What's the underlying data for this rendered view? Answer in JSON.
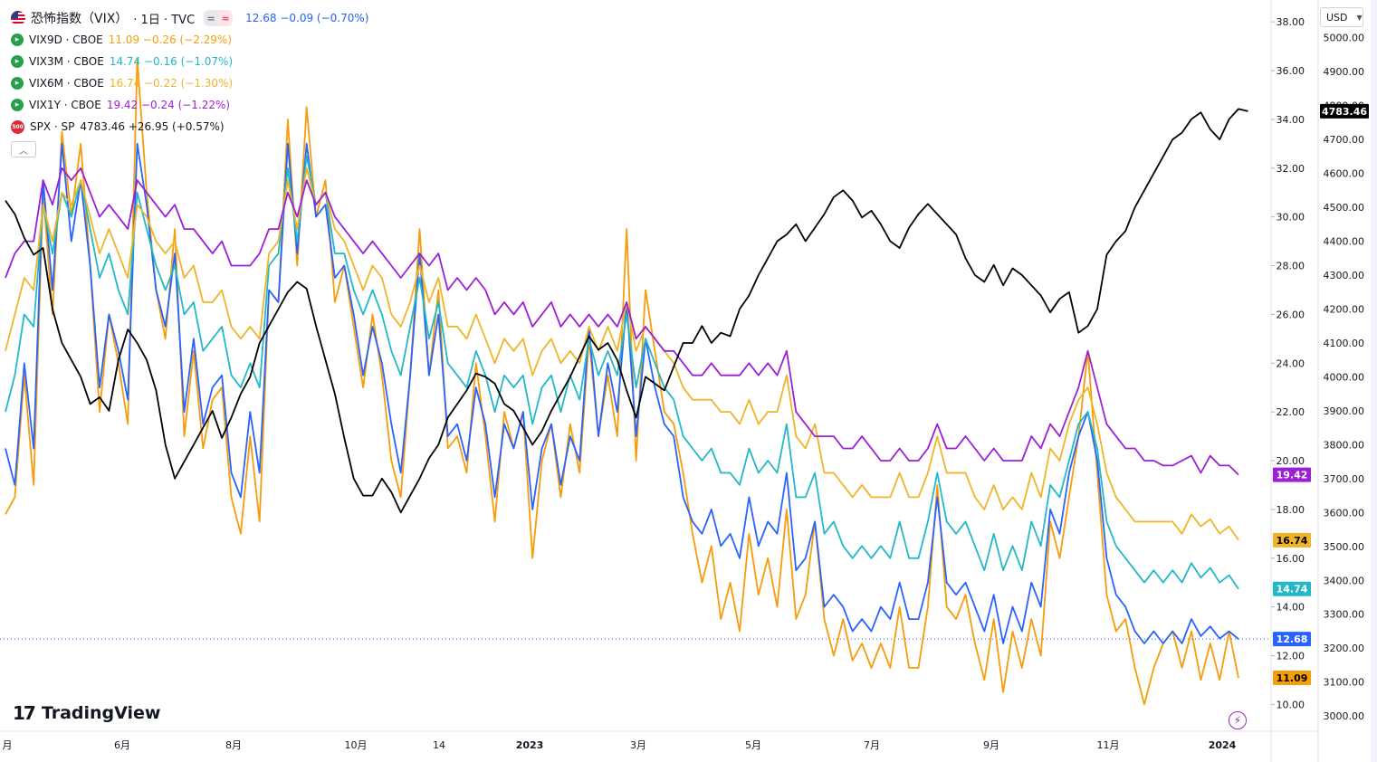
{
  "header": {
    "title": "恐怖指数（VIX）",
    "interval": "· 1日 · TVC",
    "pill_left": "=",
    "pill_right": "≈",
    "value_text": "12.68  −0.09 (−0.70%)"
  },
  "legend": [
    {
      "symbol": "VIX9D · CBOE",
      "value_text": "11.09  −0.26 (−2.29%)",
      "color": "#f59d0b"
    },
    {
      "symbol": "VIX3M · CBOE",
      "value_text": "14.74  −0.16 (−1.07%)",
      "color": "#22b8c8"
    },
    {
      "symbol": "VIX6M · CBOE",
      "value_text": "16.74  −0.22 (−1.30%)",
      "color": "#f0b429"
    },
    {
      "symbol": "VIX1Y · CBOE",
      "value_text": "19.42  −0.24 (−1.22%)",
      "color": "#9c1fd6"
    },
    {
      "symbol": "SPX · SP",
      "value_text": "4783.46  +26.95 (+0.57%)",
      "color": "#131722"
    }
  ],
  "spx_badge": "500",
  "currency": "USD",
  "logo_text": "TradingView",
  "chart_data": {
    "type": "line",
    "x_labels": [
      "月",
      "6月",
      "8月",
      "10月",
      "14",
      "2023",
      "3月",
      "5月",
      "7月",
      "9月",
      "11月",
      "2024"
    ],
    "y_left_ticks": [
      10,
      12,
      14,
      16,
      18,
      20,
      22,
      24,
      26,
      28,
      30,
      32,
      34,
      36,
      38
    ],
    "y_left_range": [
      8.9,
      38.6
    ],
    "y_right_ticks": [
      3000,
      3100,
      3200,
      3300,
      3400,
      3500,
      3600,
      3700,
      3800,
      3900,
      4000,
      4100,
      4200,
      4300,
      4400,
      4500,
      4600,
      4700,
      4800,
      4900,
      5000
    ],
    "y_right_range": [
      2955,
      5090
    ],
    "current_price_line": 12.68,
    "series": [
      {
        "name": "VIX9D",
        "axis": "left",
        "color": "#f59d0b",
        "last_label": "11.09",
        "values": [
          17.8,
          18.5,
          23.5,
          19.0,
          31.0,
          26.0,
          33.5,
          30.0,
          33.0,
          28.0,
          22.0,
          26.0,
          24.0,
          21.5,
          36.5,
          31.0,
          27.0,
          25.0,
          29.5,
          21.0,
          24.5,
          20.5,
          22.5,
          23.0,
          18.5,
          17.0,
          21.0,
          17.5,
          27.0,
          26.5,
          34.0,
          28.0,
          34.5,
          30.0,
          31.5,
          26.5,
          28.0,
          25.5,
          23.0,
          26.0,
          23.5,
          20.0,
          18.5,
          23.5,
          29.5,
          23.5,
          27.0,
          20.5,
          21.0,
          19.5,
          24.0,
          21.0,
          17.5,
          22.0,
          20.5,
          22.0,
          16.0,
          20.0,
          21.5,
          18.5,
          21.5,
          19.5,
          25.0,
          21.0,
          23.5,
          21.0,
          29.5,
          20.0,
          27.0,
          24.5,
          22.0,
          21.5,
          19.5,
          17.0,
          15.0,
          16.5,
          13.5,
          15.0,
          13.0,
          17.0,
          14.5,
          16.0,
          14.0,
          18.0,
          13.5,
          14.5,
          17.5,
          13.5,
          12.0,
          13.5,
          11.8,
          12.5,
          11.5,
          12.5,
          11.5,
          14.0,
          11.5,
          11.5,
          14.0,
          19.0,
          14.0,
          13.5,
          14.5,
          12.5,
          11.0,
          13.5,
          10.5,
          13.0,
          11.5,
          13.5,
          12.0,
          17.5,
          16.0,
          18.5,
          21.0,
          24.5,
          19.5,
          14.5,
          13.0,
          13.5,
          11.5,
          10.0,
          11.5,
          12.5,
          13.0,
          11.5,
          13.0,
          11.0,
          12.5,
          11.0,
          13.0,
          11.09
        ]
      },
      {
        "name": "VIX",
        "axis": "left",
        "color": "#2962ff",
        "last_label": "12.68",
        "values": [
          20.5,
          19.0,
          24.0,
          20.5,
          31.5,
          27.0,
          33.0,
          29.0,
          31.5,
          28.0,
          23.0,
          26.0,
          24.5,
          22.5,
          33.0,
          30.5,
          27.0,
          25.5,
          28.5,
          22.0,
          25.0,
          21.5,
          23.0,
          23.5,
          19.5,
          18.5,
          22.0,
          19.5,
          27.0,
          26.5,
          33.0,
          28.5,
          33.0,
          30.0,
          30.5,
          27.5,
          28.0,
          26.0,
          23.5,
          25.5,
          24.0,
          21.5,
          19.5,
          23.5,
          28.5,
          23.5,
          26.0,
          21.0,
          21.5,
          20.0,
          23.0,
          21.5,
          18.5,
          21.5,
          20.5,
          22.0,
          18.0,
          20.5,
          21.5,
          19.0,
          21.0,
          20.0,
          25.5,
          21.0,
          24.0,
          22.0,
          26.5,
          21.0,
          25.0,
          23.0,
          21.5,
          21.0,
          18.5,
          17.5,
          17.0,
          18.0,
          16.5,
          17.0,
          16.0,
          18.5,
          16.5,
          17.5,
          17.0,
          19.5,
          15.5,
          16.0,
          17.5,
          14.0,
          14.5,
          14.0,
          13.0,
          13.5,
          13.0,
          14.0,
          13.5,
          15.0,
          13.5,
          13.5,
          15.0,
          18.5,
          15.0,
          14.5,
          15.0,
          14.0,
          13.0,
          14.5,
          12.5,
          14.0,
          13.0,
          15.0,
          14.0,
          18.0,
          17.0,
          19.5,
          21.0,
          22.0,
          20.0,
          16.0,
          14.5,
          14.0,
          13.0,
          12.5,
          13.0,
          12.5,
          13.0,
          12.5,
          13.5,
          12.8,
          13.2,
          12.7,
          13.0,
          12.68
        ]
      },
      {
        "name": "VIX3M",
        "axis": "left",
        "color": "#22b8c8",
        "last_label": "14.74",
        "values": [
          22.0,
          23.5,
          26.0,
          25.5,
          30.5,
          28.5,
          31.0,
          30.0,
          31.5,
          29.5,
          27.5,
          28.5,
          27.0,
          26.0,
          31.0,
          29.5,
          28.0,
          27.0,
          28.0,
          26.0,
          26.5,
          24.5,
          25.0,
          25.5,
          23.5,
          23.0,
          24.0,
          23.0,
          28.0,
          28.5,
          32.0,
          29.0,
          32.5,
          30.5,
          31.0,
          28.5,
          28.5,
          27.0,
          26.0,
          27.0,
          26.0,
          24.5,
          23.5,
          25.5,
          27.5,
          25.0,
          26.5,
          24.0,
          23.5,
          23.0,
          24.5,
          23.5,
          22.0,
          23.5,
          23.0,
          23.5,
          21.5,
          23.0,
          23.5,
          22.0,
          23.5,
          22.5,
          25.0,
          23.5,
          24.5,
          23.5,
          26.0,
          23.0,
          25.0,
          24.0,
          23.0,
          22.5,
          21.0,
          20.5,
          20.0,
          20.5,
          19.5,
          19.5,
          19.0,
          20.5,
          19.5,
          20.0,
          19.5,
          21.5,
          18.5,
          18.5,
          19.5,
          17.0,
          17.5,
          16.5,
          16.0,
          16.5,
          16.0,
          16.5,
          16.0,
          17.5,
          16.0,
          16.0,
          17.5,
          19.5,
          17.5,
          17.0,
          17.5,
          16.5,
          15.5,
          17.0,
          15.5,
          16.5,
          15.5,
          17.5,
          16.5,
          19.0,
          18.5,
          20.0,
          21.5,
          22.0,
          20.5,
          17.5,
          16.5,
          16.0,
          15.5,
          15.0,
          15.5,
          15.0,
          15.5,
          15.0,
          15.8,
          15.2,
          15.6,
          15.0,
          15.3,
          14.74
        ]
      },
      {
        "name": "VIX6M",
        "axis": "left",
        "color": "#f0b429",
        "last_label": "16.74",
        "values": [
          24.5,
          26.0,
          27.5,
          27.0,
          30.5,
          29.0,
          31.0,
          30.5,
          31.5,
          30.0,
          28.5,
          29.5,
          28.5,
          27.5,
          30.5,
          30.0,
          29.0,
          28.5,
          29.0,
          27.5,
          28.0,
          26.5,
          26.5,
          27.0,
          25.5,
          25.0,
          25.5,
          25.0,
          28.5,
          29.0,
          31.5,
          29.5,
          32.0,
          30.5,
          31.0,
          29.5,
          29.0,
          28.0,
          27.0,
          28.0,
          27.5,
          26.0,
          25.5,
          26.5,
          28.0,
          26.5,
          27.5,
          25.5,
          25.5,
          25.0,
          26.0,
          25.0,
          24.0,
          25.0,
          24.5,
          25.0,
          23.5,
          24.5,
          25.0,
          24.0,
          24.5,
          24.0,
          25.5,
          24.5,
          25.5,
          24.5,
          26.5,
          24.5,
          25.5,
          25.0,
          24.5,
          24.0,
          23.0,
          22.5,
          22.5,
          22.5,
          22.0,
          22.0,
          21.5,
          22.5,
          21.5,
          22.0,
          22.0,
          23.5,
          21.0,
          20.5,
          21.5,
          19.5,
          19.5,
          19.0,
          18.5,
          19.0,
          18.5,
          18.5,
          18.5,
          19.5,
          18.5,
          18.5,
          19.5,
          21.0,
          19.5,
          19.5,
          19.5,
          18.5,
          18.0,
          19.0,
          18.0,
          18.5,
          18.0,
          19.5,
          18.5,
          20.5,
          20.0,
          21.5,
          22.5,
          23.0,
          21.5,
          19.5,
          18.5,
          18.0,
          17.5,
          17.5,
          17.5,
          17.5,
          17.5,
          17.0,
          17.8,
          17.3,
          17.6,
          17.0,
          17.3,
          16.74
        ]
      },
      {
        "name": "VIX1Y",
        "axis": "left",
        "color": "#9c1fd6",
        "last_label": "19.42",
        "values": [
          27.5,
          28.5,
          29.0,
          29.0,
          31.5,
          30.5,
          32.0,
          31.5,
          32.0,
          31.0,
          30.0,
          30.5,
          30.0,
          29.5,
          31.5,
          31.0,
          30.5,
          30.0,
          30.5,
          29.5,
          29.5,
          29.0,
          28.5,
          29.0,
          28.0,
          28.0,
          28.0,
          28.5,
          29.5,
          29.5,
          31.0,
          30.0,
          31.5,
          30.5,
          31.0,
          30.0,
          29.5,
          29.0,
          28.5,
          29.0,
          28.5,
          28.0,
          27.5,
          28.0,
          28.5,
          28.0,
          28.5,
          27.0,
          27.5,
          27.0,
          27.5,
          27.0,
          26.0,
          26.5,
          26.0,
          26.5,
          25.5,
          26.0,
          26.5,
          25.5,
          26.0,
          25.5,
          26.0,
          25.5,
          26.0,
          25.5,
          26.5,
          25.0,
          25.5,
          25.0,
          24.5,
          24.5,
          24.0,
          23.5,
          23.5,
          24.0,
          23.5,
          23.5,
          23.5,
          24.0,
          23.5,
          24.0,
          23.5,
          24.5,
          22.0,
          21.5,
          21.0,
          21.0,
          21.0,
          20.5,
          20.5,
          21.0,
          20.5,
          20.0,
          20.0,
          20.5,
          20.0,
          20.0,
          20.5,
          21.5,
          20.5,
          20.5,
          21.0,
          20.5,
          20.0,
          20.5,
          20.0,
          20.0,
          20.0,
          21.0,
          20.5,
          21.5,
          21.0,
          22.0,
          23.0,
          24.5,
          23.0,
          21.5,
          21.0,
          20.5,
          20.5,
          20.0,
          20.0,
          19.8,
          19.8,
          20.0,
          20.2,
          19.5,
          20.2,
          19.8,
          19.8,
          19.42
        ]
      },
      {
        "name": "SPX",
        "axis": "right",
        "color": "#000000",
        "last_label": "4783.46",
        "values": [
          4520,
          4480,
          4410,
          4360,
          4380,
          4200,
          4100,
          4050,
          4000,
          3920,
          3940,
          3900,
          4050,
          4140,
          4100,
          4050,
          3960,
          3800,
          3700,
          3750,
          3800,
          3850,
          3900,
          3820,
          3880,
          3950,
          4000,
          4100,
          4150,
          4200,
          4250,
          4280,
          4260,
          4150,
          4050,
          3950,
          3820,
          3700,
          3650,
          3650,
          3700,
          3660,
          3600,
          3650,
          3700,
          3760,
          3800,
          3880,
          3920,
          3960,
          4010,
          4000,
          3980,
          3920,
          3900,
          3850,
          3800,
          3840,
          3900,
          3950,
          4000,
          4060,
          4120,
          4080,
          4100,
          4050,
          3960,
          3880,
          4000,
          3980,
          3960,
          4030,
          4100,
          4100,
          4150,
          4100,
          4130,
          4120,
          4200,
          4240,
          4300,
          4350,
          4400,
          4420,
          4450,
          4400,
          4440,
          4480,
          4530,
          4550,
          4520,
          4470,
          4490,
          4450,
          4400,
          4380,
          4440,
          4480,
          4510,
          4480,
          4450,
          4420,
          4350,
          4300,
          4280,
          4330,
          4270,
          4320,
          4300,
          4270,
          4240,
          4190,
          4230,
          4250,
          4130,
          4150,
          4200,
          4360,
          4400,
          4430,
          4500,
          4550,
          4600,
          4650,
          4700,
          4720,
          4760,
          4780,
          4730,
          4700,
          4760,
          4790,
          4783.46
        ]
      }
    ]
  }
}
